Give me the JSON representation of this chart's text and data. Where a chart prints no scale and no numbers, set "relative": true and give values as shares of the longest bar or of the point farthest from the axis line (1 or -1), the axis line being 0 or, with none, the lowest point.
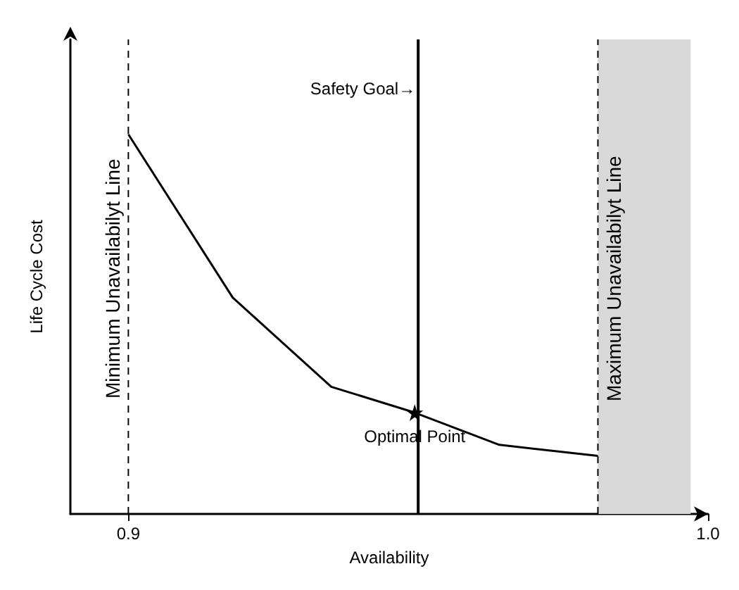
{
  "chart_data": {
    "type": "line",
    "relative": true,
    "xlabel": "Availability",
    "ylabel": "Life Cycle Cost",
    "x": [
      0.9,
      0.918,
      0.935,
      0.9494,
      0.964,
      0.981
    ],
    "series": [
      {
        "color": "#000000",
        "values": [
          1,
          0.57,
          0.335,
          0.267,
          0.182,
          0.153
        ]
      }
    ],
    "xlim": [
      0.89,
      1.0
    ],
    "xticks": [
      0.9,
      {
        "value": 1.0,
        "label": "1.0"
      }
    ],
    "grid": false,
    "marker": "none",
    "line_style": "solid",
    "ref_lines": [
      {
        "axis": "x",
        "value": 0.9,
        "label": "Minimum Unavailabilyt Line",
        "line_style": "dashed",
        "color": "#000000"
      },
      {
        "axis": "x",
        "value": 0.95,
        "label": "Safety Goal→",
        "line_style": "solid",
        "color": "#000000"
      },
      {
        "axis": "x",
        "value": 0.981,
        "label": "Maximum Unavailabilyt Line",
        "line_style": "dashed",
        "color": "#000000"
      }
    ],
    "bands": [
      {
        "axis": "x",
        "from": 0.981,
        "to": 0.997,
        "color": "#d9d9d9"
      }
    ],
    "annotations": [
      {
        "text": "Optimal Point",
        "x": 0.9494,
        "y": 0.267
      }
    ]
  }
}
